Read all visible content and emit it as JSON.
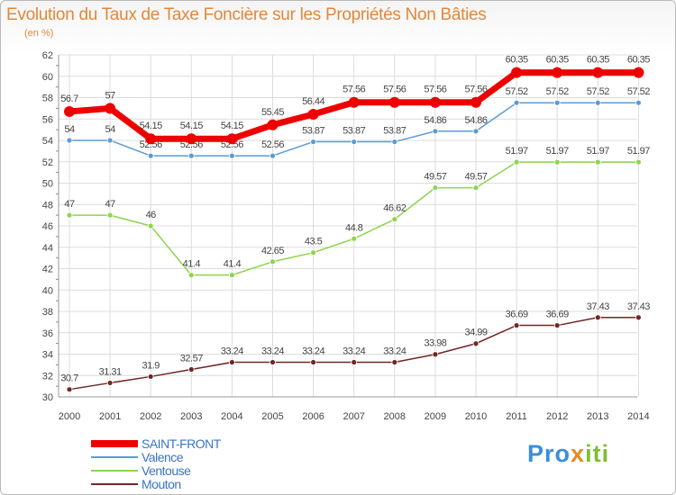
{
  "chart_data": {
    "type": "line",
    "title": "Evolution du Taux de Taxe Foncière sur les Propriétés Non Bâties",
    "subtitle": "(en %)",
    "xlabel": "",
    "ylabel": "",
    "x": [
      "2000",
      "2001",
      "2002",
      "2003",
      "2004",
      "2005",
      "2006",
      "2007",
      "2008",
      "2009",
      "2010",
      "2011",
      "2012",
      "2013",
      "2014"
    ],
    "ylim": [
      30,
      62
    ],
    "yticks": [
      30,
      32,
      34,
      36,
      38,
      40,
      42,
      44,
      46,
      48,
      50,
      52,
      54,
      56,
      58,
      60,
      62
    ],
    "grid": true,
    "legend_position": "bottom-left",
    "series": [
      {
        "name": "SAINT-FRONT",
        "color": "#ee0000",
        "values": [
          56.7,
          57,
          54.15,
          54.15,
          54.15,
          55.45,
          56.44,
          57.56,
          57.56,
          57.56,
          57.56,
          60.35,
          60.35,
          60.35,
          60.35
        ],
        "labels": [
          "56.7",
          "57",
          "54.15",
          "54.15",
          "54.15",
          "55.45",
          "56.44",
          "57.56",
          "57.56",
          "57.56",
          "57.56",
          "60.35",
          "60.35",
          "60.35",
          "60.35"
        ]
      },
      {
        "name": "Valence",
        "color": "#5b9bd5",
        "values": [
          54,
          54,
          52.56,
          52.56,
          52.56,
          52.56,
          53.87,
          53.87,
          53.87,
          54.86,
          54.86,
          57.52,
          57.52,
          57.52,
          57.52
        ],
        "labels": [
          "54",
          "54",
          "52.56",
          "52.56",
          "52.56",
          "52.56",
          "53.87",
          "53.87",
          "53.87",
          "54.86",
          "54.86",
          "57.52",
          "57.52",
          "57.52",
          "57.52"
        ]
      },
      {
        "name": "Ventouse",
        "color": "#8ed44d",
        "values": [
          47,
          47,
          46,
          41.4,
          41.4,
          42.65,
          43.5,
          44.8,
          46.62,
          49.57,
          49.57,
          51.97,
          51.97,
          51.97,
          51.97
        ],
        "labels": [
          "47",
          "47",
          "46",
          "41.4",
          "41.4",
          "42.65",
          "43.5",
          "44.8",
          "46.62",
          "49.57",
          "49.57",
          "51.97",
          "51.97",
          "51.97",
          "51.97"
        ]
      },
      {
        "name": "Mouton",
        "color": "#722626",
        "values": [
          30.7,
          31.31,
          31.9,
          32.57,
          33.24,
          33.24,
          33.24,
          33.24,
          33.24,
          33.98,
          34.99,
          36.69,
          36.69,
          37.43,
          37.43
        ],
        "labels": [
          "30.7",
          "31.31",
          "31.9",
          "32.57",
          "33.24",
          "33.24",
          "33.24",
          "33.24",
          "33.24",
          "33.98",
          "34.99",
          "36.69",
          "36.69",
          "37.43",
          "37.43"
        ]
      }
    ]
  },
  "legend": {
    "items": [
      {
        "label": "SAINT-FRONT",
        "color": "#ee0000"
      },
      {
        "label": "Valence",
        "color": "#5b9bd5"
      },
      {
        "label": "Ventouse",
        "color": "#8ed44d"
      },
      {
        "label": "Mouton",
        "color": "#722626"
      }
    ]
  },
  "branding": {
    "letters": [
      {
        "ch": "P",
        "color": "#3a8fd8"
      },
      {
        "ch": "r",
        "color": "#3a8fd8"
      },
      {
        "ch": "o",
        "color": "#3a8fd8"
      },
      {
        "ch": "x",
        "color": "#e8891f"
      },
      {
        "ch": "i",
        "color": "#7fbf2e"
      },
      {
        "ch": "t",
        "color": "#7fbf2e"
      },
      {
        "ch": "i",
        "color": "#7fbf2e"
      }
    ]
  }
}
